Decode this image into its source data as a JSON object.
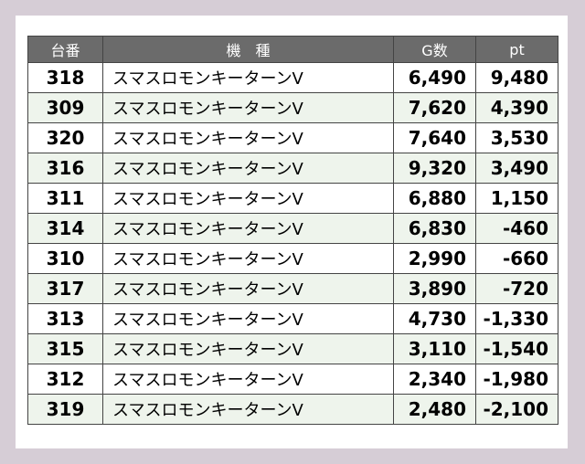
{
  "table": {
    "headers": {
      "machine_no": "台番",
      "machine_name": "機　種",
      "games": "G数",
      "points": "pt"
    },
    "rows": [
      {
        "machine_no": "318",
        "machine_name": "スマスロモンキーターンV",
        "games": "6,490",
        "points": "9,480"
      },
      {
        "machine_no": "309",
        "machine_name": "スマスロモンキーターンV",
        "games": "7,620",
        "points": "4,390"
      },
      {
        "machine_no": "320",
        "machine_name": "スマスロモンキーターンV",
        "games": "7,640",
        "points": "3,530"
      },
      {
        "machine_no": "316",
        "machine_name": "スマスロモンキーターンV",
        "games": "9,320",
        "points": "3,490"
      },
      {
        "machine_no": "311",
        "machine_name": "スマスロモンキーターンV",
        "games": "6,880",
        "points": "1,150"
      },
      {
        "machine_no": "314",
        "machine_name": "スマスロモンキーターンV",
        "games": "6,830",
        "points": "-460"
      },
      {
        "machine_no": "310",
        "machine_name": "スマスロモンキーターンV",
        "games": "2,990",
        "points": "-660"
      },
      {
        "machine_no": "317",
        "machine_name": "スマスロモンキーターンV",
        "games": "3,890",
        "points": "-720"
      },
      {
        "machine_no": "313",
        "machine_name": "スマスロモンキーターンV",
        "games": "4,730",
        "points": "-1,330"
      },
      {
        "machine_no": "315",
        "machine_name": "スマスロモンキーターンV",
        "games": "3,110",
        "points": "-1,540"
      },
      {
        "machine_no": "312",
        "machine_name": "スマスロモンキーターンV",
        "games": "2,340",
        "points": "-1,980"
      },
      {
        "machine_no": "319",
        "machine_name": "スマスロモンキーターンV",
        "games": "2,480",
        "points": "-2,100"
      }
    ]
  },
  "colors": {
    "page_background": "#d6cdd6",
    "header_background": "#6b6b6b",
    "header_text": "#ffffff",
    "row_stripe": "#eef4ec",
    "row_plain": "#ffffff",
    "border": "#444444"
  }
}
